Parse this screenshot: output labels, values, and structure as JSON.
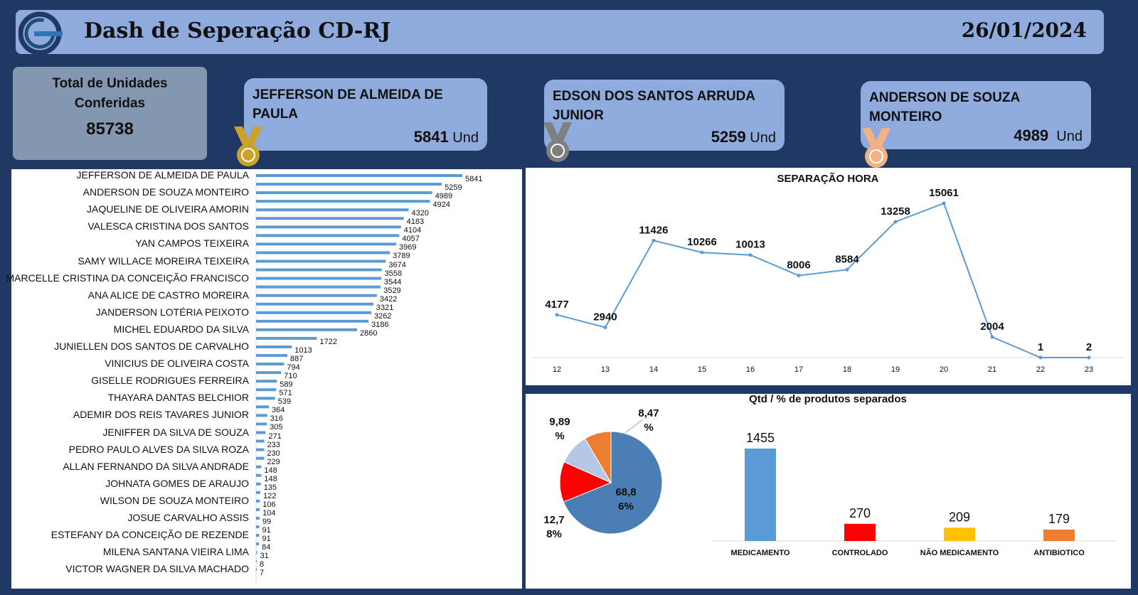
{
  "header": {
    "title": "Dash de Seperação CD-RJ",
    "date": "26/01/2024"
  },
  "total": {
    "label": "Total de Unidades Conferidas",
    "value": "85738"
  },
  "podium": [
    {
      "name": "JEFFERSON DE ALMEIDA DE PAULA",
      "value": "5841",
      "unit": "Und",
      "medal_color": "#c9a227"
    },
    {
      "name": "EDSON DOS SANTOS ARRUDA JUNIOR",
      "value": "5259",
      "unit": "Und",
      "medal_color": "#7f7f7f"
    },
    {
      "name": "ANDERSON DE SOUZA MONTEIRO",
      "value": "4989",
      "unit": "Und",
      "medal_color": "#f4b183"
    }
  ],
  "colors": {
    "background": "#1f3864",
    "header": "#8faadc",
    "bar": "#5b9bd5",
    "line": "#5b9bd5"
  },
  "chart_data": [
    {
      "type": "bar",
      "orientation": "horizontal",
      "name_labels": [
        "JEFFERSON DE ALMEIDA DE PAULA",
        "ANDERSON DE SOUZA MONTEIRO",
        "JAQUELINE DE OLIVEIRA AMORIN",
        "VALESCA CRISTINA DOS SANTOS",
        "YAN CAMPOS TEIXEIRA",
        "SAMY WILLACE MOREIRA TEIXEIRA",
        "MARCELLE CRISTINA DA CONCEIÇÃO FRANCISCO",
        "ANA ALICE DE CASTRO MOREIRA",
        "JANDERSON LOTÉRIA PEIXOTO",
        "MICHEL EDUARDO DA SILVA",
        "JUNIELLEN DOS SANTOS DE CARVALHO",
        "VINICIUS DE OLIVEIRA COSTA",
        "GISELLE RODRIGUES FERREIRA",
        "THAYARA DANTAS BELCHIOR",
        "ADEMIR DOS REIS TAVARES JUNIOR",
        "JENIFFER DA SILVA DE SOUZA",
        "PEDRO PAULO ALVES DA SILVA ROZA",
        "ALLAN FERNANDO DA SILVA ANDRADE",
        "JOHNATA GOMES DE ARAUJO",
        "WILSON DE SOUZA MONTEIRO",
        "JOSUE CARVALHO ASSIS",
        "ESTEFANY DA CONCEIÇÃO DE REZENDE",
        "MILENA SANTANA VIEIRA LIMA",
        "VICTOR WAGNER DA SILVA MACHADO"
      ],
      "values": [
        5841,
        5259,
        4989,
        4924,
        4320,
        4183,
        4104,
        4057,
        3969,
        3789,
        3674,
        3558,
        3544,
        3529,
        3422,
        3321,
        3262,
        3186,
        2860,
        1722,
        1013,
        887,
        794,
        710,
        589,
        571,
        539,
        364,
        316,
        305,
        271,
        233,
        230,
        229,
        148,
        148,
        135,
        122,
        106,
        104,
        99,
        91,
        91,
        84,
        31,
        8,
        7
      ]
    },
    {
      "type": "line",
      "title": "SEPARAÇÃO HORA",
      "x": [
        "12",
        "13",
        "14",
        "15",
        "16",
        "17",
        "18",
        "19",
        "20",
        "21",
        "22",
        "23"
      ],
      "y": [
        4177,
        2940,
        11426,
        10266,
        10013,
        8006,
        8584,
        13258,
        15061,
        2004,
        1,
        2
      ]
    },
    {
      "type": "pie",
      "title": "Qtd / % de produtos separados",
      "slices": [
        {
          "label": "68,8\n6%",
          "value": 68.86,
          "color": "#4a7eb5"
        },
        {
          "label": "12,7\n8%",
          "value": 12.78,
          "color": "#ff0000"
        },
        {
          "label": "9,89\n%",
          "value": 9.89,
          "color": "#b4c7e7"
        },
        {
          "label": "8,47\n%",
          "value": 8.47,
          "color": "#ed7d31"
        }
      ]
    },
    {
      "type": "bar",
      "categories": [
        "MEDICAMENTO",
        "CONTROLADO",
        "NÃO MEDICAMENTO",
        "ANTIBIOTICO"
      ],
      "values": [
        1455,
        270,
        209,
        179
      ],
      "colors": [
        "#5b9bd5",
        "#ff0000",
        "#ffc000",
        "#ed7d31"
      ]
    }
  ]
}
